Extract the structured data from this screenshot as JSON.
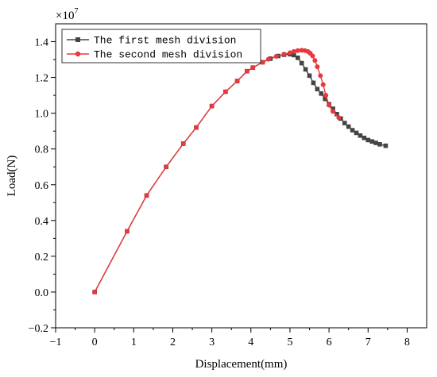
{
  "chart_data": {
    "type": "line",
    "xlabel": "Displacement(mm)",
    "ylabel": "Load(N)",
    "y_multiplier_base": "×10",
    "y_multiplier_exp": "7",
    "xlim": [
      -1,
      8.5
    ],
    "ylim": [
      -0.2,
      1.5
    ],
    "xticks": [
      -1,
      0,
      1,
      2,
      3,
      4,
      5,
      6,
      7,
      8
    ],
    "yticks": [
      -0.2,
      0.0,
      0.2,
      0.4,
      0.6,
      0.8,
      1.0,
      1.2,
      1.4
    ],
    "xtick_labels": [
      "−1",
      "0",
      "1",
      "2",
      "3",
      "4",
      "5",
      "6",
      "7",
      "8"
    ],
    "ytick_labels": [
      "−0.2",
      "0.0",
      "0.2",
      "0.4",
      "0.6",
      "0.8",
      "1.0",
      "1.2",
      "1.4"
    ],
    "legend_position": "top-left",
    "series": [
      {
        "name": "The first mesh division",
        "color": "#444444",
        "marker": "square",
        "points": [
          [
            0,
            0.0
          ],
          [
            0.83,
            0.34
          ],
          [
            1.33,
            0.54
          ],
          [
            1.83,
            0.7
          ],
          [
            2.27,
            0.83
          ],
          [
            2.6,
            0.92
          ],
          [
            3.0,
            1.04
          ],
          [
            3.35,
            1.12
          ],
          [
            3.65,
            1.18
          ],
          [
            3.9,
            1.235
          ],
          [
            4.05,
            1.255
          ],
          [
            4.3,
            1.285
          ],
          [
            4.5,
            1.305
          ],
          [
            4.7,
            1.32
          ],
          [
            4.85,
            1.327
          ],
          [
            5.0,
            1.33
          ],
          [
            5.1,
            1.325
          ],
          [
            5.2,
            1.31
          ],
          [
            5.3,
            1.28
          ],
          [
            5.4,
            1.245
          ],
          [
            5.5,
            1.21
          ],
          [
            5.6,
            1.17
          ],
          [
            5.7,
            1.135
          ],
          [
            5.8,
            1.11
          ],
          [
            5.9,
            1.08
          ],
          [
            6.0,
            1.05
          ],
          [
            6.1,
            1.025
          ],
          [
            6.2,
            0.995
          ],
          [
            6.3,
            0.97
          ],
          [
            6.4,
            0.945
          ],
          [
            6.5,
            0.925
          ],
          [
            6.6,
            0.905
          ],
          [
            6.7,
            0.89
          ],
          [
            6.8,
            0.875
          ],
          [
            6.9,
            0.862
          ],
          [
            7.0,
            0.85
          ],
          [
            7.1,
            0.842
          ],
          [
            7.2,
            0.834
          ],
          [
            7.3,
            0.826
          ],
          [
            7.45,
            0.818
          ]
        ]
      },
      {
        "name": "The second mesh division",
        "color": "#e8383d",
        "marker": "circle",
        "points": [
          [
            0,
            0.0
          ],
          [
            0.83,
            0.34
          ],
          [
            1.33,
            0.54
          ],
          [
            1.83,
            0.7
          ],
          [
            2.27,
            0.83
          ],
          [
            2.6,
            0.92
          ],
          [
            3.0,
            1.04
          ],
          [
            3.35,
            1.12
          ],
          [
            3.65,
            1.18
          ],
          [
            3.9,
            1.235
          ],
          [
            4.05,
            1.255
          ],
          [
            4.3,
            1.285
          ],
          [
            4.45,
            1.302
          ],
          [
            4.65,
            1.318
          ],
          [
            4.85,
            1.33
          ],
          [
            5.0,
            1.338
          ],
          [
            5.1,
            1.345
          ],
          [
            5.2,
            1.35
          ],
          [
            5.3,
            1.352
          ],
          [
            5.38,
            1.35
          ],
          [
            5.46,
            1.345
          ],
          [
            5.52,
            1.335
          ],
          [
            5.58,
            1.32
          ],
          [
            5.64,
            1.295
          ],
          [
            5.7,
            1.26
          ],
          [
            5.78,
            1.21
          ],
          [
            5.85,
            1.16
          ],
          [
            5.92,
            1.1
          ],
          [
            6.0,
            1.045
          ],
          [
            6.1,
            1.01
          ],
          [
            6.25,
            0.975
          ]
        ]
      }
    ]
  }
}
